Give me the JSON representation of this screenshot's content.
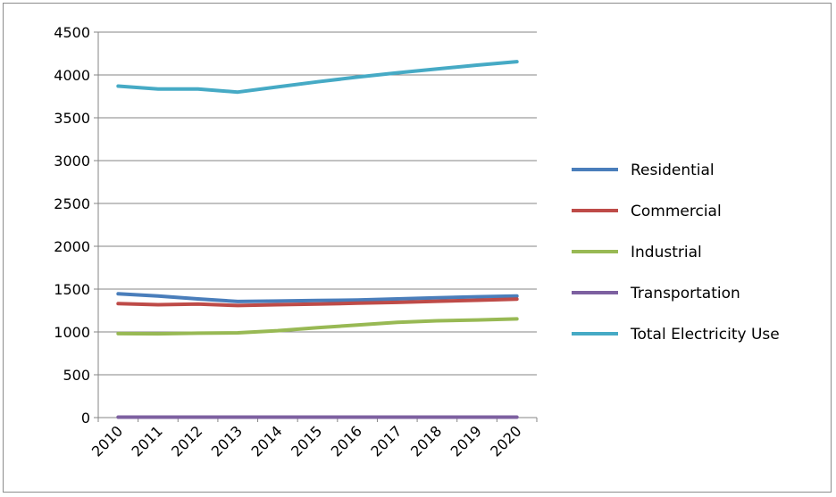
{
  "chart_data": {
    "type": "line",
    "title": "",
    "xlabel": "",
    "ylabel": "",
    "categories": [
      "2010",
      "2011",
      "2012",
      "2013",
      "2014",
      "2015",
      "2016",
      "2017",
      "2018",
      "2019",
      "2020"
    ],
    "ylim": [
      0,
      4500
    ],
    "yticks": [
      0,
      500,
      1000,
      1500,
      2000,
      2500,
      3000,
      3500,
      4000,
      4500
    ],
    "grid": "horizontal",
    "legend_position": "right",
    "series": [
      {
        "name": "Residential",
        "color": "#4a7ebb",
        "values": [
          1445,
          1420,
          1385,
          1355,
          1360,
          1368,
          1372,
          1385,
          1398,
          1410,
          1420
        ]
      },
      {
        "name": "Commercial",
        "color": "#be4b48",
        "values": [
          1330,
          1318,
          1325,
          1308,
          1318,
          1325,
          1335,
          1345,
          1358,
          1370,
          1383
        ]
      },
      {
        "name": "Industrial",
        "color": "#98b954",
        "values": [
          980,
          978,
          985,
          990,
          1015,
          1050,
          1080,
          1112,
          1130,
          1140,
          1152
        ]
      },
      {
        "name": "Transportation",
        "color": "#7d60a0",
        "values": [
          5,
          5,
          5,
          5,
          5,
          5,
          5,
          5,
          5,
          5,
          5
        ]
      },
      {
        "name": "Total Electricity Use",
        "color": "#46aac5",
        "values": [
          3870,
          3835,
          3835,
          3800,
          3860,
          3920,
          3975,
          4025,
          4070,
          4115,
          4155
        ]
      }
    ]
  }
}
